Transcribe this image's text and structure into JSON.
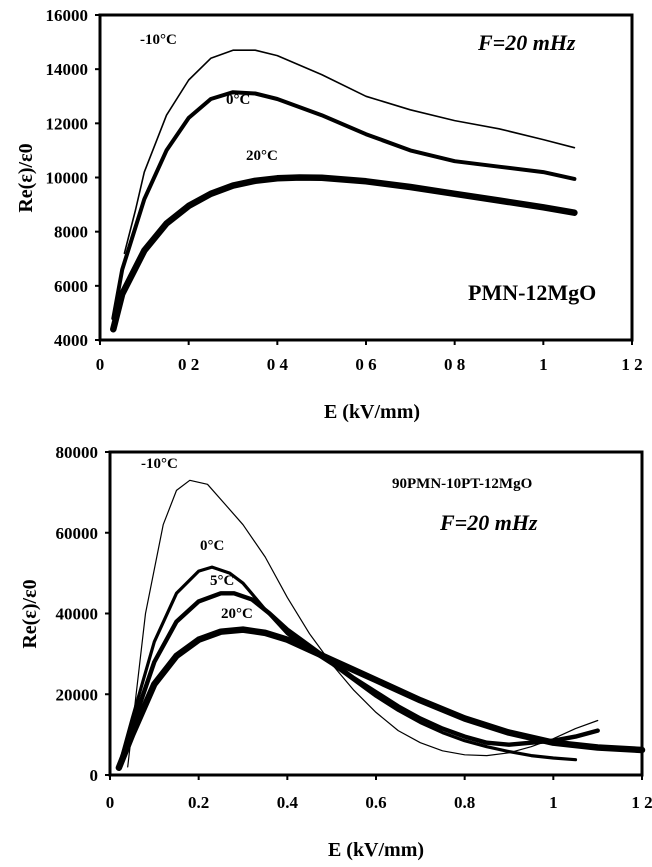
{
  "chart_data": [
    {
      "type": "line",
      "xlabel": "E (kV/mm)",
      "ylabel": "Re(ε)/ε0",
      "xlim": [
        0,
        1.2
      ],
      "ylim": [
        4000,
        16000
      ],
      "x_ticks": [
        "0",
        "0 2",
        "0 4",
        "0 6",
        "0 8",
        "1",
        "1 2"
      ],
      "y_ticks": [
        "4000",
        "6000",
        "8000",
        "10000",
        "12000",
        "14000",
        "16000"
      ],
      "annotations": {
        "frequency": "F=20 mHz",
        "material": "PMN-12MgO"
      },
      "series": [
        {
          "name": "-10°C",
          "x": [
            0.055,
            0.08,
            0.1,
            0.15,
            0.2,
            0.25,
            0.3,
            0.35,
            0.4,
            0.5,
            0.6,
            0.7,
            0.8,
            0.9,
            1.0,
            1.07
          ],
          "y": [
            7200,
            8800,
            10200,
            12300,
            13600,
            14400,
            14700,
            14700,
            14500,
            13800,
            13000,
            12500,
            12100,
            11800,
            11400,
            11100
          ]
        },
        {
          "name": "0°C",
          "x": [
            0.03,
            0.05,
            0.1,
            0.15,
            0.2,
            0.25,
            0.3,
            0.35,
            0.4,
            0.5,
            0.6,
            0.7,
            0.8,
            0.9,
            1.0,
            1.07
          ],
          "y": [
            4800,
            6600,
            9200,
            11000,
            12200,
            12900,
            13150,
            13100,
            12900,
            12300,
            11600,
            11000,
            10600,
            10400,
            10200,
            9950
          ]
        },
        {
          "name": "20°C",
          "x": [
            0.03,
            0.05,
            0.1,
            0.15,
            0.2,
            0.25,
            0.3,
            0.35,
            0.4,
            0.45,
            0.5,
            0.6,
            0.7,
            0.8,
            0.9,
            1.0,
            1.07
          ],
          "y": [
            4400,
            5700,
            7300,
            8300,
            8950,
            9400,
            9700,
            9880,
            9970,
            10000,
            9990,
            9860,
            9650,
            9400,
            9150,
            8900,
            8700
          ]
        }
      ]
    },
    {
      "type": "line",
      "xlabel": "E (kV/mm)",
      "ylabel": "Re(ε)/ε0",
      "xlim": [
        0,
        1.2
      ],
      "ylim": [
        0,
        80000
      ],
      "x_ticks": [
        "0",
        "0.2",
        "0.4",
        "0.6",
        "0.8",
        "1",
        "1 2"
      ],
      "y_ticks": [
        "0",
        "20000",
        "40000",
        "60000",
        "80000"
      ],
      "annotations": {
        "material": "90PMN-10PT-12MgO",
        "frequency": "F=20 mHz"
      },
      "series": [
        {
          "name": "-10°C",
          "x": [
            0.04,
            0.08,
            0.12,
            0.15,
            0.18,
            0.22,
            0.26,
            0.3,
            0.35,
            0.4,
            0.45,
            0.5,
            0.55,
            0.6,
            0.65,
            0.7,
            0.75,
            0.8,
            0.85,
            0.9,
            0.95,
            1.0,
            1.05,
            1.1
          ],
          "y": [
            2000,
            40000,
            62000,
            70500,
            73000,
            72000,
            67000,
            62000,
            54000,
            44000,
            35000,
            27500,
            21000,
            15500,
            11000,
            8000,
            6000,
            5000,
            4800,
            5500,
            7000,
            9000,
            11500,
            13500
          ]
        },
        {
          "name": "0°C",
          "x": [
            0.02,
            0.05,
            0.1,
            0.15,
            0.2,
            0.23,
            0.27,
            0.3,
            0.35,
            0.4,
            0.45,
            0.5,
            0.55,
            0.6,
            0.65,
            0.7,
            0.75,
            0.8,
            0.85,
            0.9,
            0.95,
            1.0,
            1.05
          ],
          "y": [
            2000,
            14000,
            33000,
            45000,
            50500,
            51500,
            50000,
            47500,
            41000,
            35000,
            31000,
            27500,
            23500,
            19500,
            16000,
            13000,
            10500,
            8500,
            7000,
            5800,
            4800,
            4200,
            3800
          ]
        },
        {
          "name": "5°C",
          "x": [
            0.02,
            0.05,
            0.1,
            0.15,
            0.2,
            0.25,
            0.28,
            0.32,
            0.36,
            0.4,
            0.45,
            0.5,
            0.55,
            0.6,
            0.65,
            0.7,
            0.75,
            0.8,
            0.85,
            0.9,
            0.95,
            1.0,
            1.05,
            1.1
          ],
          "y": [
            2000,
            12000,
            28000,
            38000,
            43000,
            45000,
            45000,
            43500,
            40000,
            36000,
            32000,
            28000,
            24000,
            20500,
            17000,
            14000,
            11500,
            9500,
            8000,
            7500,
            8000,
            8500,
            9500,
            11000
          ]
        },
        {
          "name": "20°C",
          "x": [
            0.02,
            0.05,
            0.1,
            0.15,
            0.2,
            0.25,
            0.3,
            0.35,
            0.4,
            0.45,
            0.5,
            0.55,
            0.6,
            0.7,
            0.8,
            0.9,
            1.0,
            1.1,
            1.2
          ],
          "y": [
            1800,
            10000,
            22500,
            29500,
            33500,
            35500,
            36000,
            35200,
            33500,
            31000,
            28500,
            26000,
            23500,
            18500,
            14000,
            10500,
            8000,
            6800,
            6200
          ]
        }
      ]
    }
  ]
}
